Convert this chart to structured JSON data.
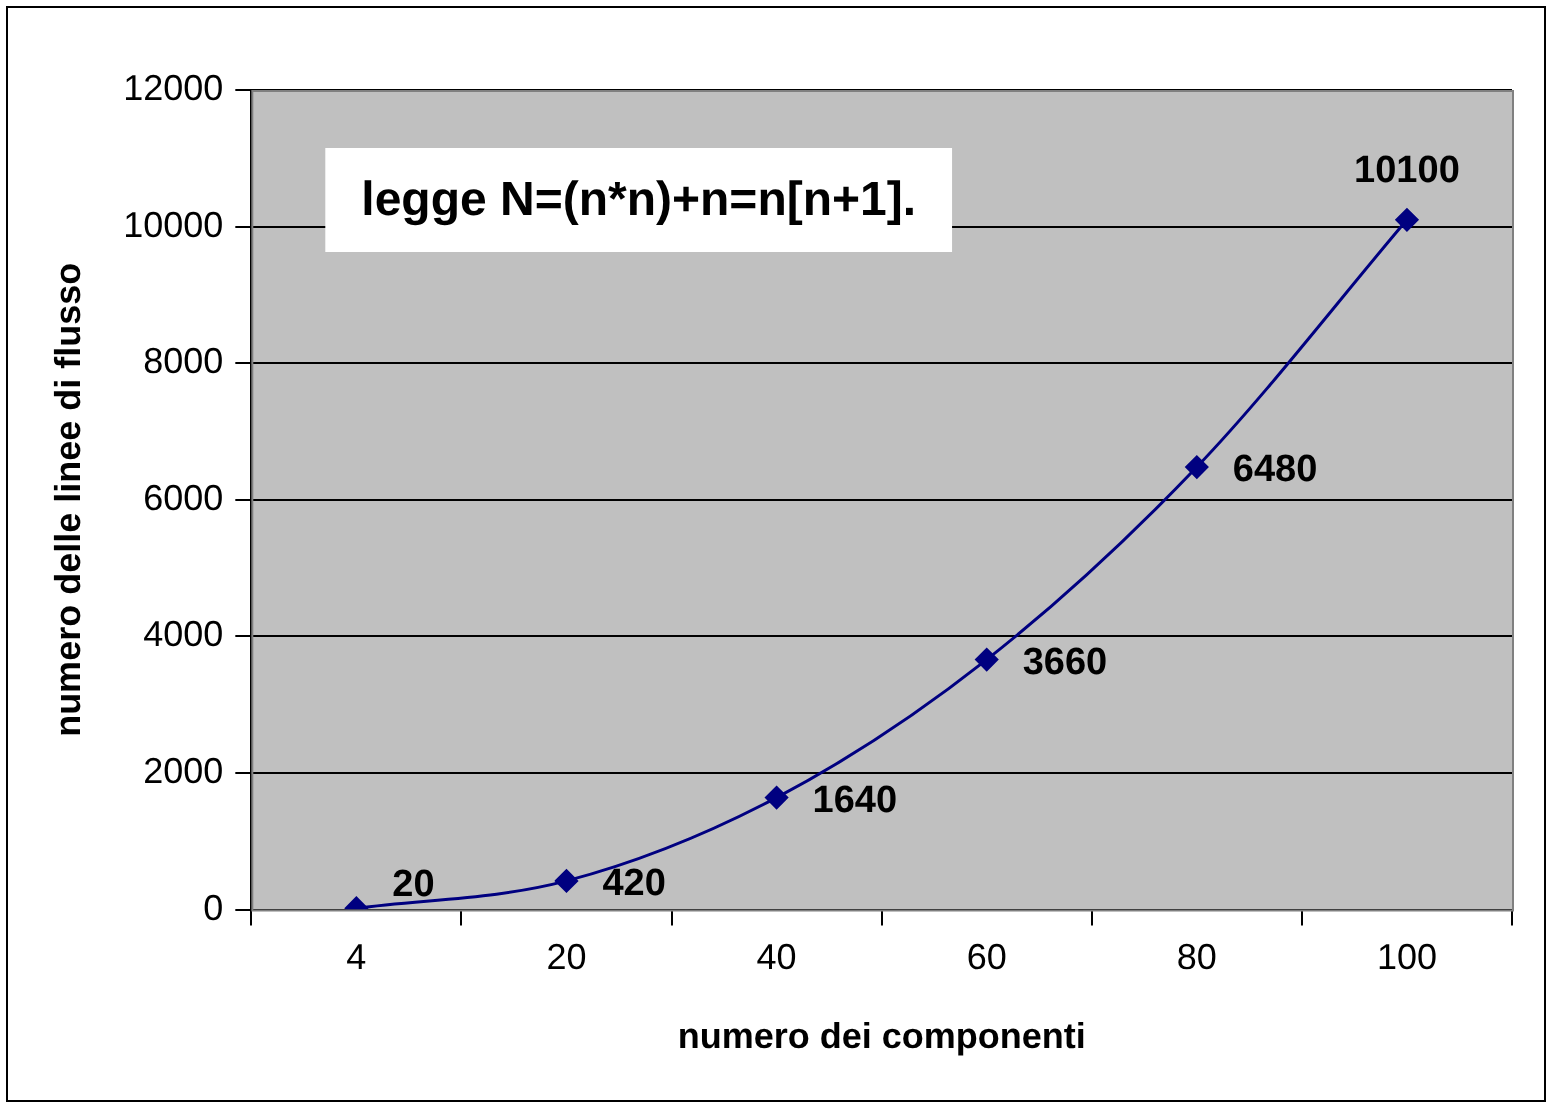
{
  "chart_data": {
    "type": "line",
    "categories": [
      "4",
      "20",
      "40",
      "60",
      "80",
      "100"
    ],
    "values": [
      20,
      420,
      1640,
      3660,
      6480,
      10100
    ],
    "color": "#000080",
    "marker": "diamond",
    "data_labels": true,
    "xlabel": "numero dei componenti",
    "ylabel": "numero delle linee di flusso",
    "annotations": [
      "legge N=(n*n)+n=n[n+1]."
    ],
    "ylim": [
      0,
      12000
    ],
    "yticks": [
      0,
      2000,
      4000,
      6000,
      8000,
      10000,
      12000
    ],
    "grid": "y"
  }
}
